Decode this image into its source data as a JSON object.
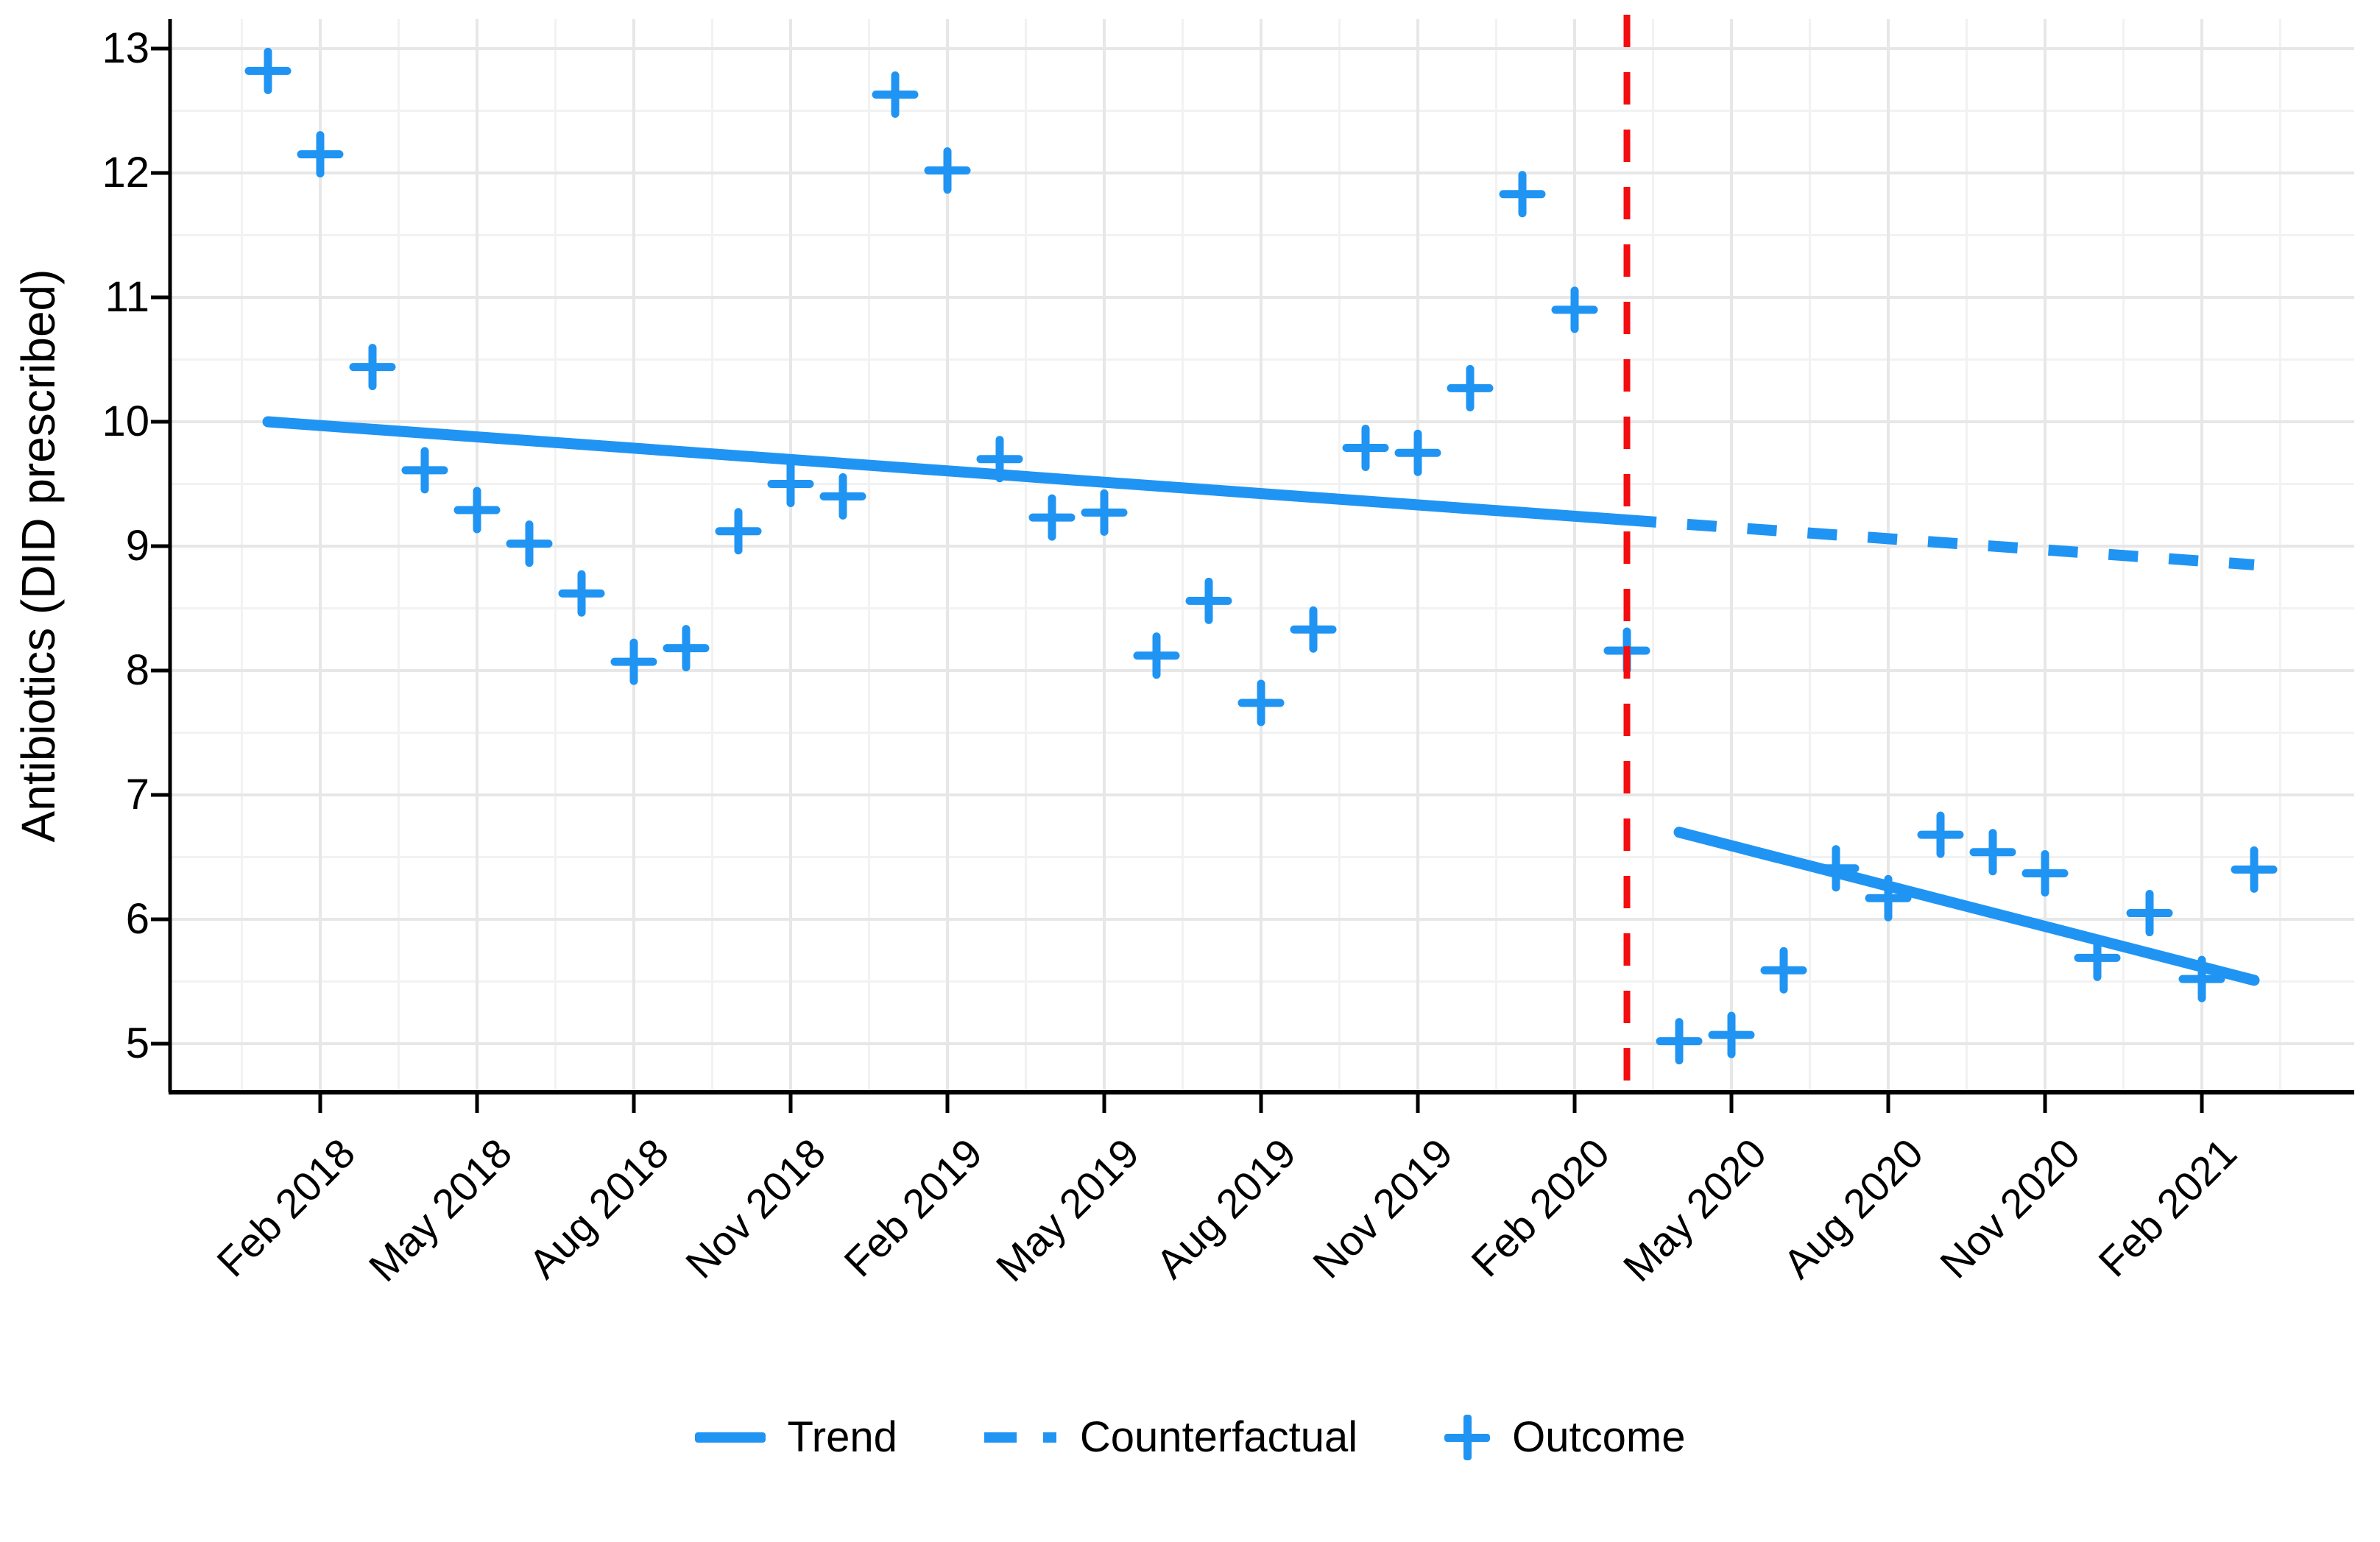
{
  "figure": {
    "kind": "interrupted-time-series-plot",
    "background": "#ffffff"
  },
  "colors": {
    "series_blue": "#2094F3",
    "intervention_red": "#F20D11",
    "grid_major": "#E7E7E7",
    "grid_minor": "#F2F2F2",
    "axis_black": "#000000"
  },
  "legend": {
    "position": "bottom",
    "items": [
      {
        "label": "Trend",
        "swatch": "solid-line"
      },
      {
        "label": "Counterfactual",
        "swatch": "dashed-line"
      },
      {
        "label": "Outcome",
        "swatch": "plus-marker"
      }
    ]
  },
  "chart_data": {
    "type": "scatter",
    "title": "",
    "xlabel": "",
    "ylabel": "Antibiotics (DID prescribed)",
    "ylim": [
      4.6,
      13.25
    ],
    "y_ticks": [
      5,
      6,
      7,
      8,
      9,
      10,
      11,
      12,
      13
    ],
    "y_minor_ticks": [
      5.5,
      6.5,
      7.5,
      8.5,
      9.5,
      10.5,
      11.5,
      12.5
    ],
    "grid": "major-and-minor",
    "legend_position": "bottom",
    "x_months": [
      "Jan 2018",
      "Feb 2018",
      "Mar 2018",
      "Apr 2018",
      "May 2018",
      "Jun 2018",
      "Jul 2018",
      "Aug 2018",
      "Sep 2018",
      "Oct 2018",
      "Nov 2018",
      "Dec 2018",
      "Jan 2019",
      "Feb 2019",
      "Mar 2019",
      "Apr 2019",
      "May 2019",
      "Jun 2019",
      "Jul 2019",
      "Aug 2019",
      "Sep 2019",
      "Oct 2019",
      "Nov 2019",
      "Dec 2019",
      "Jan 2020",
      "Feb 2020",
      "Mar 2020",
      "Apr 2020",
      "May 2020",
      "Jun 2020",
      "Jul 2020",
      "Aug 2020",
      "Sep 2020",
      "Oct 2020",
      "Nov 2020",
      "Dec 2020",
      "Jan 2021",
      "Feb 2021",
      "Mar 2021"
    ],
    "x_tick_labels": [
      "Feb 2018",
      "May 2018",
      "Aug 2018",
      "Nov 2018",
      "Feb 2019",
      "May 2019",
      "Aug 2019",
      "Nov 2019",
      "Feb 2020",
      "May 2020",
      "Aug 2020",
      "Nov 2020",
      "Feb 2021"
    ],
    "x_tick_month_indices": [
      1,
      4,
      7,
      10,
      13,
      16,
      19,
      22,
      25,
      28,
      31,
      34,
      37
    ],
    "series": [
      {
        "name": "Outcome",
        "type": "scatter",
        "marker": "plus",
        "values": [
          12.82,
          12.15,
          10.44,
          9.61,
          9.29,
          9.02,
          8.62,
          8.07,
          8.18,
          9.12,
          9.5,
          9.4,
          12.63,
          12.02,
          9.7,
          9.23,
          9.27,
          8.12,
          8.56,
          7.74,
          8.33,
          9.79,
          9.75,
          10.27,
          11.83,
          10.9,
          8.16,
          5.02,
          5.07,
          5.59,
          6.41,
          6.17,
          6.68,
          6.54,
          6.37,
          5.69,
          6.05,
          5.52,
          6.4
        ]
      },
      {
        "name": "Trend",
        "type": "line",
        "style": "solid",
        "points": [
          {
            "month_index": 0,
            "value": 10.0
          },
          {
            "month_index": 26,
            "value": 9.21
          }
        ]
      },
      {
        "name": "Trend (post-intervention)",
        "type": "line",
        "style": "solid",
        "points": [
          {
            "month_index": 27,
            "value": 6.7
          },
          {
            "month_index": 38,
            "value": 5.51
          }
        ]
      },
      {
        "name": "Counterfactual",
        "type": "line",
        "style": "dashed",
        "points": [
          {
            "month_index": 26,
            "value": 9.21
          },
          {
            "month_index": 38,
            "value": 8.85
          }
        ]
      }
    ],
    "intervention_line": {
      "month_index": 26,
      "style": "dashed"
    }
  }
}
